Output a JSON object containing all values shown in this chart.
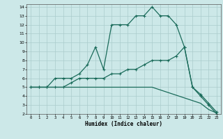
{
  "xlabel": "Humidex (Indice chaleur)",
  "background_color": "#cce8e8",
  "grid_color": "#aacccc",
  "line_color": "#1a6b5a",
  "xlim": [
    -0.5,
    23.5
  ],
  "ylim": [
    2,
    14.3
  ],
  "xticks": [
    0,
    1,
    2,
    3,
    4,
    5,
    6,
    7,
    8,
    9,
    10,
    11,
    12,
    13,
    14,
    15,
    16,
    17,
    18,
    19,
    20,
    21,
    22,
    23
  ],
  "yticks": [
    2,
    3,
    4,
    5,
    6,
    7,
    8,
    9,
    10,
    11,
    12,
    13,
    14
  ],
  "line1_x": [
    0,
    1,
    2,
    3,
    4,
    5,
    6,
    7,
    8,
    9,
    10,
    11,
    12,
    13,
    14,
    15,
    16,
    17,
    18,
    19,
    20,
    21,
    22,
    23
  ],
  "line1_y": [
    5,
    5,
    5,
    6,
    6,
    6,
    6.5,
    7.5,
    9.5,
    7,
    12,
    12,
    12,
    13,
    13,
    14,
    13,
    13,
    12,
    9.5,
    5,
    4,
    3,
    2
  ],
  "line2_x": [
    0,
    1,
    2,
    3,
    4,
    5,
    6,
    7,
    8,
    9,
    10,
    11,
    12,
    13,
    14,
    15,
    16,
    17,
    18,
    19,
    20,
    21,
    22,
    23
  ],
  "line2_y": [
    5,
    5,
    5,
    5,
    5,
    5.5,
    6,
    6,
    6,
    6,
    6.5,
    6.5,
    7,
    7,
    7.5,
    8,
    8,
    8,
    8.5,
    9.5,
    5,
    4.2,
    3.2,
    2.2
  ],
  "line3_x": [
    0,
    1,
    2,
    3,
    4,
    5,
    6,
    7,
    8,
    9,
    10,
    11,
    12,
    13,
    14,
    15,
    16,
    17,
    18,
    19,
    20,
    21,
    22,
    23
  ],
  "line3_y": [
    5,
    5,
    5,
    5,
    5,
    5,
    5,
    5,
    5,
    5,
    5,
    5,
    5,
    5,
    5,
    5,
    4.7,
    4.4,
    4.1,
    3.8,
    3.5,
    3.2,
    2.5,
    2.1
  ]
}
